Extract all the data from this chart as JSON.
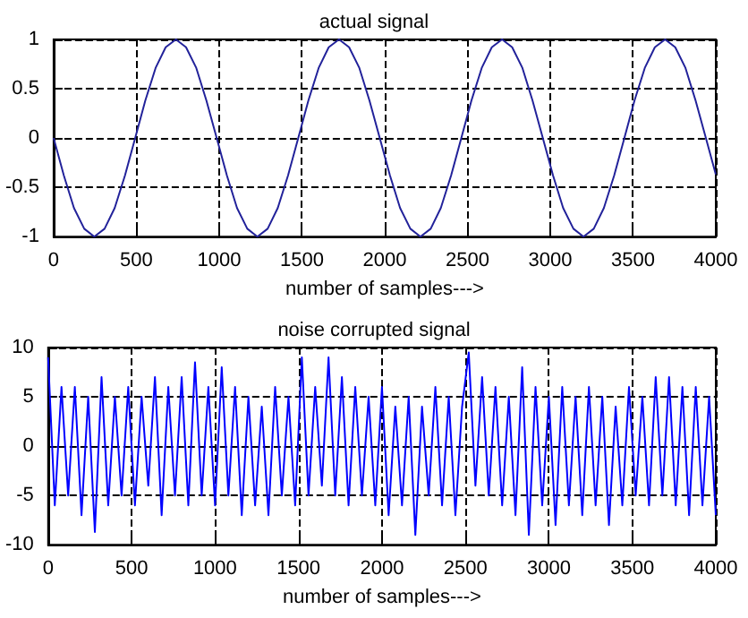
{
  "chart_data": [
    {
      "type": "line",
      "title": "actual signal",
      "xlabel": "number of samples--->",
      "color": "#22229a",
      "marker": "none",
      "grid": true,
      "x": [
        0,
        62,
        123,
        185,
        246,
        308,
        369,
        431,
        493,
        554,
        616,
        677,
        739,
        800,
        862,
        923,
        985,
        1047,
        1108,
        1170,
        1231,
        1293,
        1354,
        1416,
        1478,
        1539,
        1601,
        1662,
        1724,
        1785,
        1847,
        1908,
        1970,
        2032,
        2093,
        2155,
        2216,
        2278,
        2339,
        2401,
        2463,
        2524,
        2586,
        2647,
        2709,
        2770,
        2832,
        2893,
        2955,
        3017,
        3078,
        3140,
        3201,
        3263,
        3324,
        3386,
        3448,
        3509,
        3571,
        3632,
        3694,
        3755,
        3817,
        3878,
        3940,
        4000
      ],
      "values": [
        0,
        -0.38,
        -0.71,
        -0.92,
        -1,
        -0.92,
        -0.71,
        -0.38,
        0,
        0.38,
        0.71,
        0.92,
        1,
        0.92,
        0.71,
        0.38,
        0,
        -0.38,
        -0.71,
        -0.92,
        -1,
        -0.92,
        -0.71,
        -0.38,
        0,
        0.38,
        0.71,
        0.92,
        1,
        0.92,
        0.71,
        0.38,
        0,
        -0.38,
        -0.71,
        -0.92,
        -1,
        -0.92,
        -0.71,
        -0.38,
        0,
        0.38,
        0.71,
        0.92,
        1,
        0.92,
        0.71,
        0.38,
        0,
        -0.38,
        -0.71,
        -0.92,
        -1,
        -0.92,
        -0.71,
        -0.38,
        0,
        0.38,
        0.71,
        0.92,
        1,
        0.92,
        0.71,
        0.38,
        0,
        -0.37
      ],
      "xlim": [
        0,
        4000
      ],
      "xticks": [
        0,
        500,
        1000,
        1500,
        2000,
        2500,
        3000,
        3500,
        4000
      ],
      "ylim": [
        -1,
        1
      ],
      "yticks": [
        -1,
        -0.5,
        0,
        0.5,
        1
      ]
    },
    {
      "type": "line",
      "title": "noise corrupted signal",
      "xlabel": "number of samples--->",
      "color": "#0000ff",
      "marker": "none",
      "grid": true,
      "x": [
        0,
        40,
        80,
        120,
        160,
        200,
        240,
        280,
        320,
        360,
        400,
        440,
        480,
        520,
        560,
        600,
        640,
        680,
        720,
        760,
        800,
        840,
        880,
        920,
        960,
        1000,
        1040,
        1080,
        1120,
        1160,
        1200,
        1240,
        1280,
        1320,
        1360,
        1400,
        1440,
        1480,
        1520,
        1560,
        1600,
        1640,
        1680,
        1720,
        1760,
        1800,
        1840,
        1880,
        1920,
        1960,
        2000,
        2040,
        2080,
        2120,
        2160,
        2200,
        2240,
        2280,
        2320,
        2360,
        2400,
        2440,
        2480,
        2520,
        2560,
        2600,
        2640,
        2680,
        2720,
        2760,
        2800,
        2840,
        2880,
        2920,
        2960,
        3000,
        3040,
        3080,
        3120,
        3160,
        3200,
        3240,
        3280,
        3320,
        3360,
        3400,
        3440,
        3480,
        3520,
        3560,
        3600,
        3640,
        3680,
        3720,
        3760,
        3800,
        3840,
        3880,
        3920,
        3960,
        4000
      ],
      "values": [
        9,
        -6,
        6,
        -5,
        6,
        -7,
        5,
        -8.7,
        7,
        -6,
        5,
        -5,
        6,
        -6,
        5,
        -4,
        7,
        -7,
        6,
        -5,
        7,
        -6,
        8.5,
        -5,
        6,
        -6,
        8,
        -5,
        6,
        -7,
        5,
        -6,
        4,
        -7,
        6,
        -5,
        5,
        -6,
        9,
        -5,
        6,
        -4,
        9,
        -5,
        7,
        -6,
        6,
        -5,
        5,
        -6,
        6,
        -7,
        4,
        -6,
        5,
        -9,
        4,
        -5,
        6,
        -6,
        5,
        -7,
        4,
        9.5,
        -4,
        7,
        -5,
        6,
        -6,
        5,
        -7,
        8,
        -9,
        6,
        -6,
        5,
        -8,
        6,
        -6,
        5,
        -7,
        6,
        -6,
        5,
        -8,
        4,
        -6,
        6,
        -5,
        5,
        -6,
        7,
        -5,
        7,
        -6,
        6,
        -7,
        6,
        -6,
        5,
        -7
      ],
      "xlim": [
        0,
        4000
      ],
      "xticks": [
        0,
        500,
        1000,
        1500,
        2000,
        2500,
        3000,
        3500,
        4000
      ],
      "ylim": [
        -10,
        10
      ],
      "yticks": [
        -10,
        -5,
        0,
        5,
        10
      ]
    }
  ]
}
